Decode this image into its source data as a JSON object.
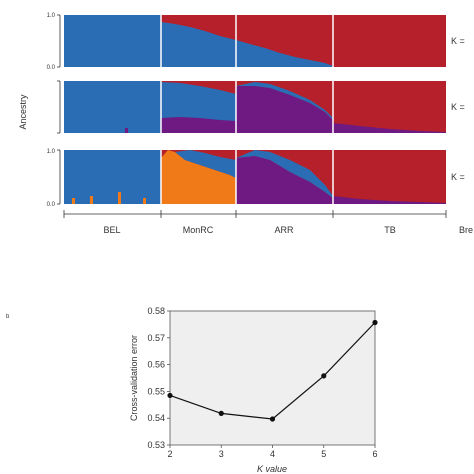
{
  "panel_a": {
    "ylabel": "Ancestry",
    "ytick_top": "1.0",
    "ytick_bottom": "0.0",
    "klabels": [
      "K =",
      "K =",
      "K ="
    ],
    "breeds": [
      "BEL",
      "MonRC",
      "ARR",
      "TB"
    ],
    "breed_axis_label": "Bre",
    "colors": {
      "blue": "#2a6db5",
      "red": "#b5202a",
      "purple": "#6e1a82",
      "orange": "#f07a17",
      "divider": "#ffffff"
    }
  },
  "panel_b": {
    "letter": "b"
  },
  "chart_data": {
    "type": "line",
    "title": "",
    "xlabel": "K value",
    "ylabel": "Cross-validation error",
    "x": [
      2,
      3,
      4,
      5,
      6
    ],
    "y": [
      0.5485,
      0.5418,
      0.5397,
      0.5558,
      0.5757
    ],
    "xlim": [
      2,
      6
    ],
    "ylim": [
      0.53,
      0.58
    ],
    "xticks": [
      "2",
      "3",
      "4",
      "5",
      "6"
    ],
    "yticks": [
      "0.53",
      "0.54",
      "0.55",
      "0.56",
      "0.57",
      "0.58"
    ],
    "grid": false,
    "background": "#efefef",
    "line_color": "#111111"
  }
}
